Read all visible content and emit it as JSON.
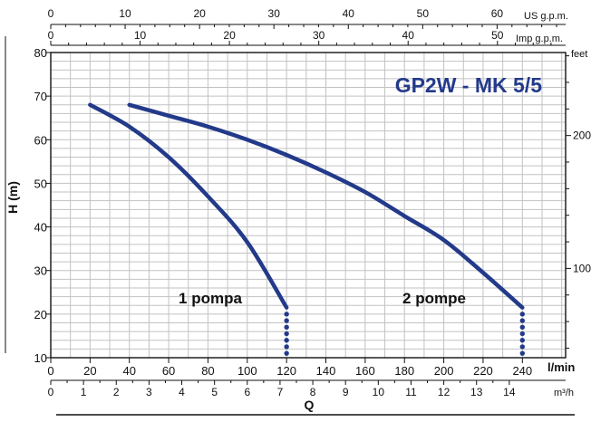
{
  "chart_data": {
    "type": "line",
    "title": "GP2W - MK 5/5",
    "ylabel": "H (m)",
    "ylabel_right": "feet",
    "xlabel": "Q",
    "xlim": [
      0,
      262
    ],
    "ylim": [
      10,
      80
    ],
    "x_unit": "l/min",
    "grid": true,
    "x_ticks": [
      0,
      20,
      40,
      60,
      80,
      100,
      120,
      140,
      160,
      180,
      200,
      220,
      240
    ],
    "y_ticks": [
      10,
      20,
      30,
      40,
      50,
      60,
      70,
      80
    ],
    "m3h_unit": "m³/h",
    "m3h_ticks": [
      0,
      1,
      2,
      3,
      4,
      5,
      6,
      7,
      8,
      9,
      10,
      11,
      12,
      13,
      14
    ],
    "us_gpm_unit": "US g.p.m.",
    "us_gpm_ticks": [
      0,
      10,
      20,
      30,
      40,
      50,
      60
    ],
    "imp_gpm_unit": "Imp g.p.m.",
    "imp_gpm_ticks": [
      0,
      10,
      20,
      30,
      40,
      50
    ],
    "feet_ticks": [
      100,
      200
    ],
    "series": [
      {
        "name": "1 pompa",
        "x": [
          20,
          40,
          60,
          80,
          100,
          120
        ],
        "y": [
          68,
          63,
          56,
          47,
          36.5,
          21.5
        ],
        "limit_x": 120,
        "limit_y": [
          20,
          11
        ]
      },
      {
        "name": "2 pompe",
        "x": [
          40,
          60,
          80,
          100,
          120,
          140,
          160,
          180,
          200,
          220,
          240
        ],
        "y": [
          68,
          65.5,
          63,
          60,
          56.5,
          52.5,
          48,
          42.5,
          37,
          29.5,
          21.5
        ],
        "limit_x": 240,
        "limit_y": [
          20,
          11
        ]
      }
    ],
    "colors": {
      "curve": "#233a8a",
      "title": "#233a8a",
      "grid": "#c2c2c2",
      "axis": "#111111"
    }
  }
}
